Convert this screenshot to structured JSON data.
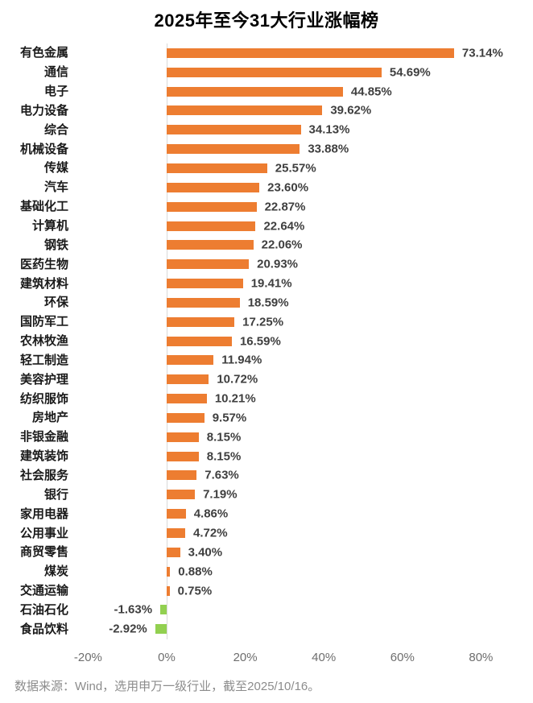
{
  "title": "2025年至今31大行业涨幅榜",
  "footer": "数据来源：Wind，选用申万一级行业，截至2025/10/16。",
  "colors": {
    "positive_bar": "#ED7D31",
    "negative_bar": "#92D050",
    "axis_line": "#D9D9D9",
    "tick_text": "#6E6E6E",
    "value_text": "#3F3F3F",
    "category_text": "#1a1a1a",
    "footer_text": "#8C8C8C"
  },
  "chart_data": {
    "type": "bar",
    "orientation": "horizontal",
    "title": "2025年至今31大行业涨幅榜",
    "xlabel": "",
    "ylabel": "",
    "legend": "none",
    "grid": "off",
    "xlim": [
      -20,
      88
    ],
    "categories": [
      "有色金属",
      "通信",
      "电子",
      "电力设备",
      "综合",
      "机械设备",
      "传媒",
      "汽车",
      "基础化工",
      "计算机",
      "钢铁",
      "医药生物",
      "建筑材料",
      "环保",
      "国防军工",
      "农林牧渔",
      "轻工制造",
      "美容护理",
      "纺织服饰",
      "房地产",
      "非银金融",
      "建筑装饰",
      "社会服务",
      "银行",
      "家用电器",
      "公用事业",
      "商贸零售",
      "煤炭",
      "交通运输",
      "石油石化",
      "食品饮料"
    ],
    "values": [
      73.14,
      54.69,
      44.85,
      39.62,
      34.13,
      33.88,
      25.57,
      23.6,
      22.87,
      22.64,
      22.06,
      20.93,
      19.41,
      18.59,
      17.25,
      16.59,
      11.94,
      10.72,
      10.21,
      9.57,
      8.15,
      8.15,
      7.63,
      7.19,
      4.86,
      4.72,
      3.4,
      0.88,
      0.75,
      -1.63,
      -2.92
    ],
    "value_labels": [
      "73.14%",
      "54.69%",
      "44.85%",
      "39.62%",
      "34.13%",
      "33.88%",
      "25.57%",
      "23.60%",
      "22.87%",
      "22.64%",
      "22.06%",
      "20.93%",
      "19.41%",
      "18.59%",
      "17.25%",
      "16.59%",
      "11.94%",
      "10.72%",
      "10.21%",
      "9.57%",
      "8.15%",
      "8.15%",
      "7.63%",
      "7.19%",
      "4.86%",
      "4.72%",
      "3.40%",
      "0.88%",
      "0.75%",
      "-1.63%",
      "-2.92%"
    ],
    "ticks": [
      {
        "label": "-20%",
        "value": -20
      },
      {
        "label": "0%",
        "value": 0
      },
      {
        "label": "20%",
        "value": 20
      },
      {
        "label": "40%",
        "value": 40
      },
      {
        "label": "60%",
        "value": 60
      },
      {
        "label": "80%",
        "value": 80
      }
    ]
  }
}
